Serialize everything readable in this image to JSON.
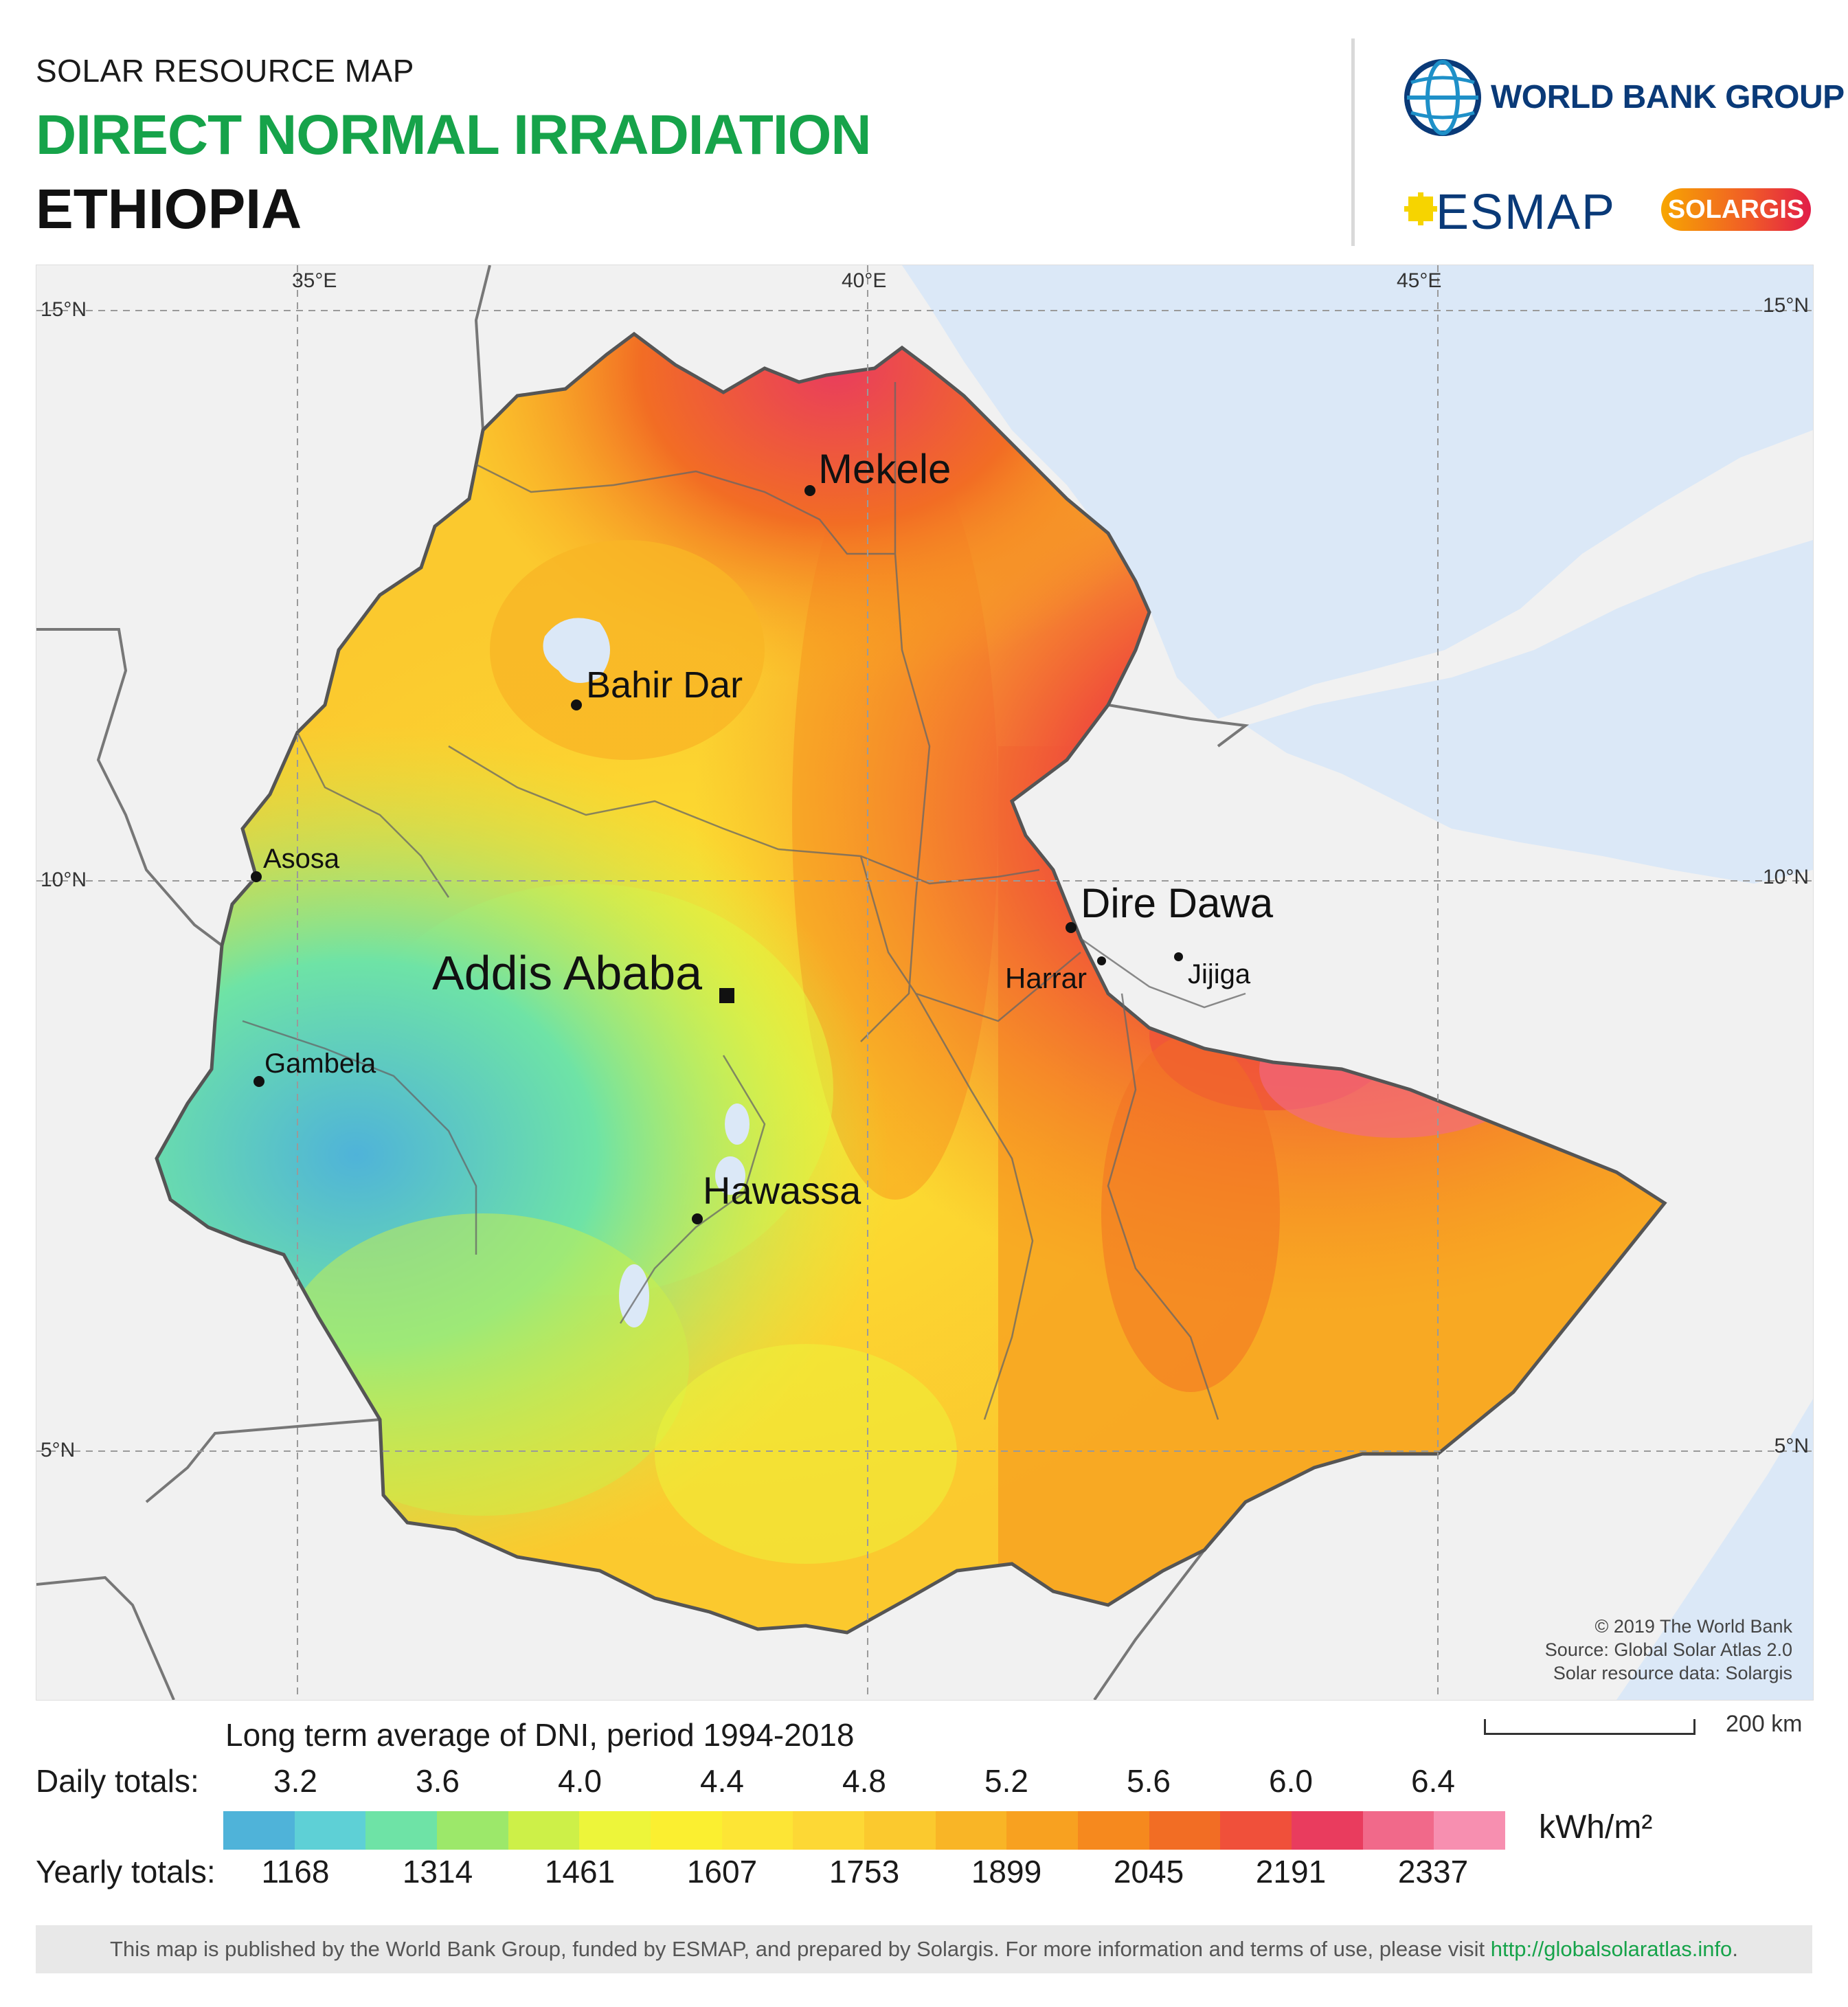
{
  "header": {
    "subtitle": "SOLAR RESOURCE MAP",
    "title": "DIRECT NORMAL IRRADIATION",
    "country": "ETHIOPIA"
  },
  "logos": {
    "world_bank": "WORLD BANK GROUP",
    "esmap": "ESMAP",
    "solargis": "SOLARGIS"
  },
  "map": {
    "grid_lon_labels": [
      "35°E",
      "40°E",
      "45°E"
    ],
    "grid_lat_labels": [
      "15°N",
      "10°N",
      "5°N"
    ],
    "cities": [
      {
        "name": "Mekele",
        "size": "large"
      },
      {
        "name": "Bahir Dar",
        "size": "medium"
      },
      {
        "name": "Asosa",
        "size": "small"
      },
      {
        "name": "Addis Ababa",
        "size": "capital"
      },
      {
        "name": "Dire Dawa",
        "size": "large"
      },
      {
        "name": "Harrar",
        "size": "small"
      },
      {
        "name": "Jijiga",
        "size": "small"
      },
      {
        "name": "Gambela",
        "size": "small"
      },
      {
        "name": "Hawassa",
        "size": "medium"
      }
    ],
    "credits": [
      "© 2019 The World Bank",
      "Source: Global Solar Atlas 2.0",
      "Solar resource data: Solargis"
    ],
    "colors": {
      "sea": "#dbe8f7",
      "land_outside": "#efefef",
      "border": "#555555"
    }
  },
  "legend": {
    "caption": "Long term average of DNI, period 1994-2018",
    "daily_label": "Daily totals:",
    "yearly_label": "Yearly totals:",
    "daily_values": [
      "3.2",
      "3.6",
      "4.0",
      "4.4",
      "4.8",
      "5.2",
      "5.6",
      "6.0",
      "6.4"
    ],
    "yearly_values": [
      "1168",
      "1314",
      "1461",
      "1607",
      "1753",
      "1899",
      "2045",
      "2191",
      "2337"
    ],
    "units": "kWh/m²",
    "colors": [
      "#4fb3d9",
      "#5ed0d6",
      "#6ee3a6",
      "#9ce86a",
      "#cdf048",
      "#edf53a",
      "#fbef30",
      "#fde535",
      "#fdd835",
      "#fbc92e",
      "#f9b526",
      "#f8a120",
      "#f6891e",
      "#f26d24",
      "#f0503a",
      "#e93c5e",
      "#f1698a",
      "#f78fb0"
    ]
  },
  "scale": {
    "label": "200 km"
  },
  "footer": {
    "text": "This map is published by the World Bank Group, funded by ESMAP, and prepared by Solargis. For more information and terms of use, please visit ",
    "link": "http://globalsolaratlas.info",
    "end": "."
  }
}
